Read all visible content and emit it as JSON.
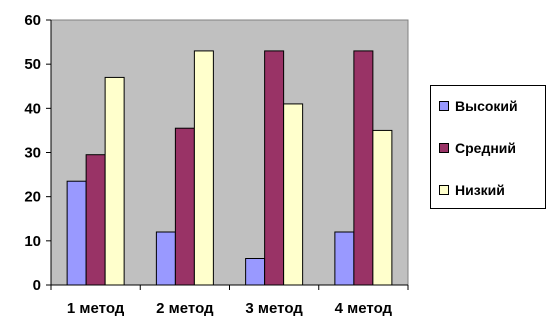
{
  "chart_data": {
    "type": "bar",
    "categories": [
      "1 метод",
      "2 метод",
      "3 метод",
      "4 метод"
    ],
    "series": [
      {
        "name": "Высокий",
        "values": [
          23.5,
          12,
          6,
          12
        ],
        "color": "#9999FF"
      },
      {
        "name": "Средний",
        "values": [
          29.5,
          35.5,
          53,
          53
        ],
        "color": "#993366"
      },
      {
        "name": "Низкий",
        "values": [
          47,
          53,
          41,
          35
        ],
        "color": "#FFFFCC"
      }
    ],
    "yticks": [
      "0",
      "10",
      "20",
      "30",
      "40",
      "50",
      "60"
    ],
    "ylim": [
      0,
      60
    ],
    "grid": false,
    "plot_background": "#C0C0C0",
    "legend_position": "right"
  }
}
